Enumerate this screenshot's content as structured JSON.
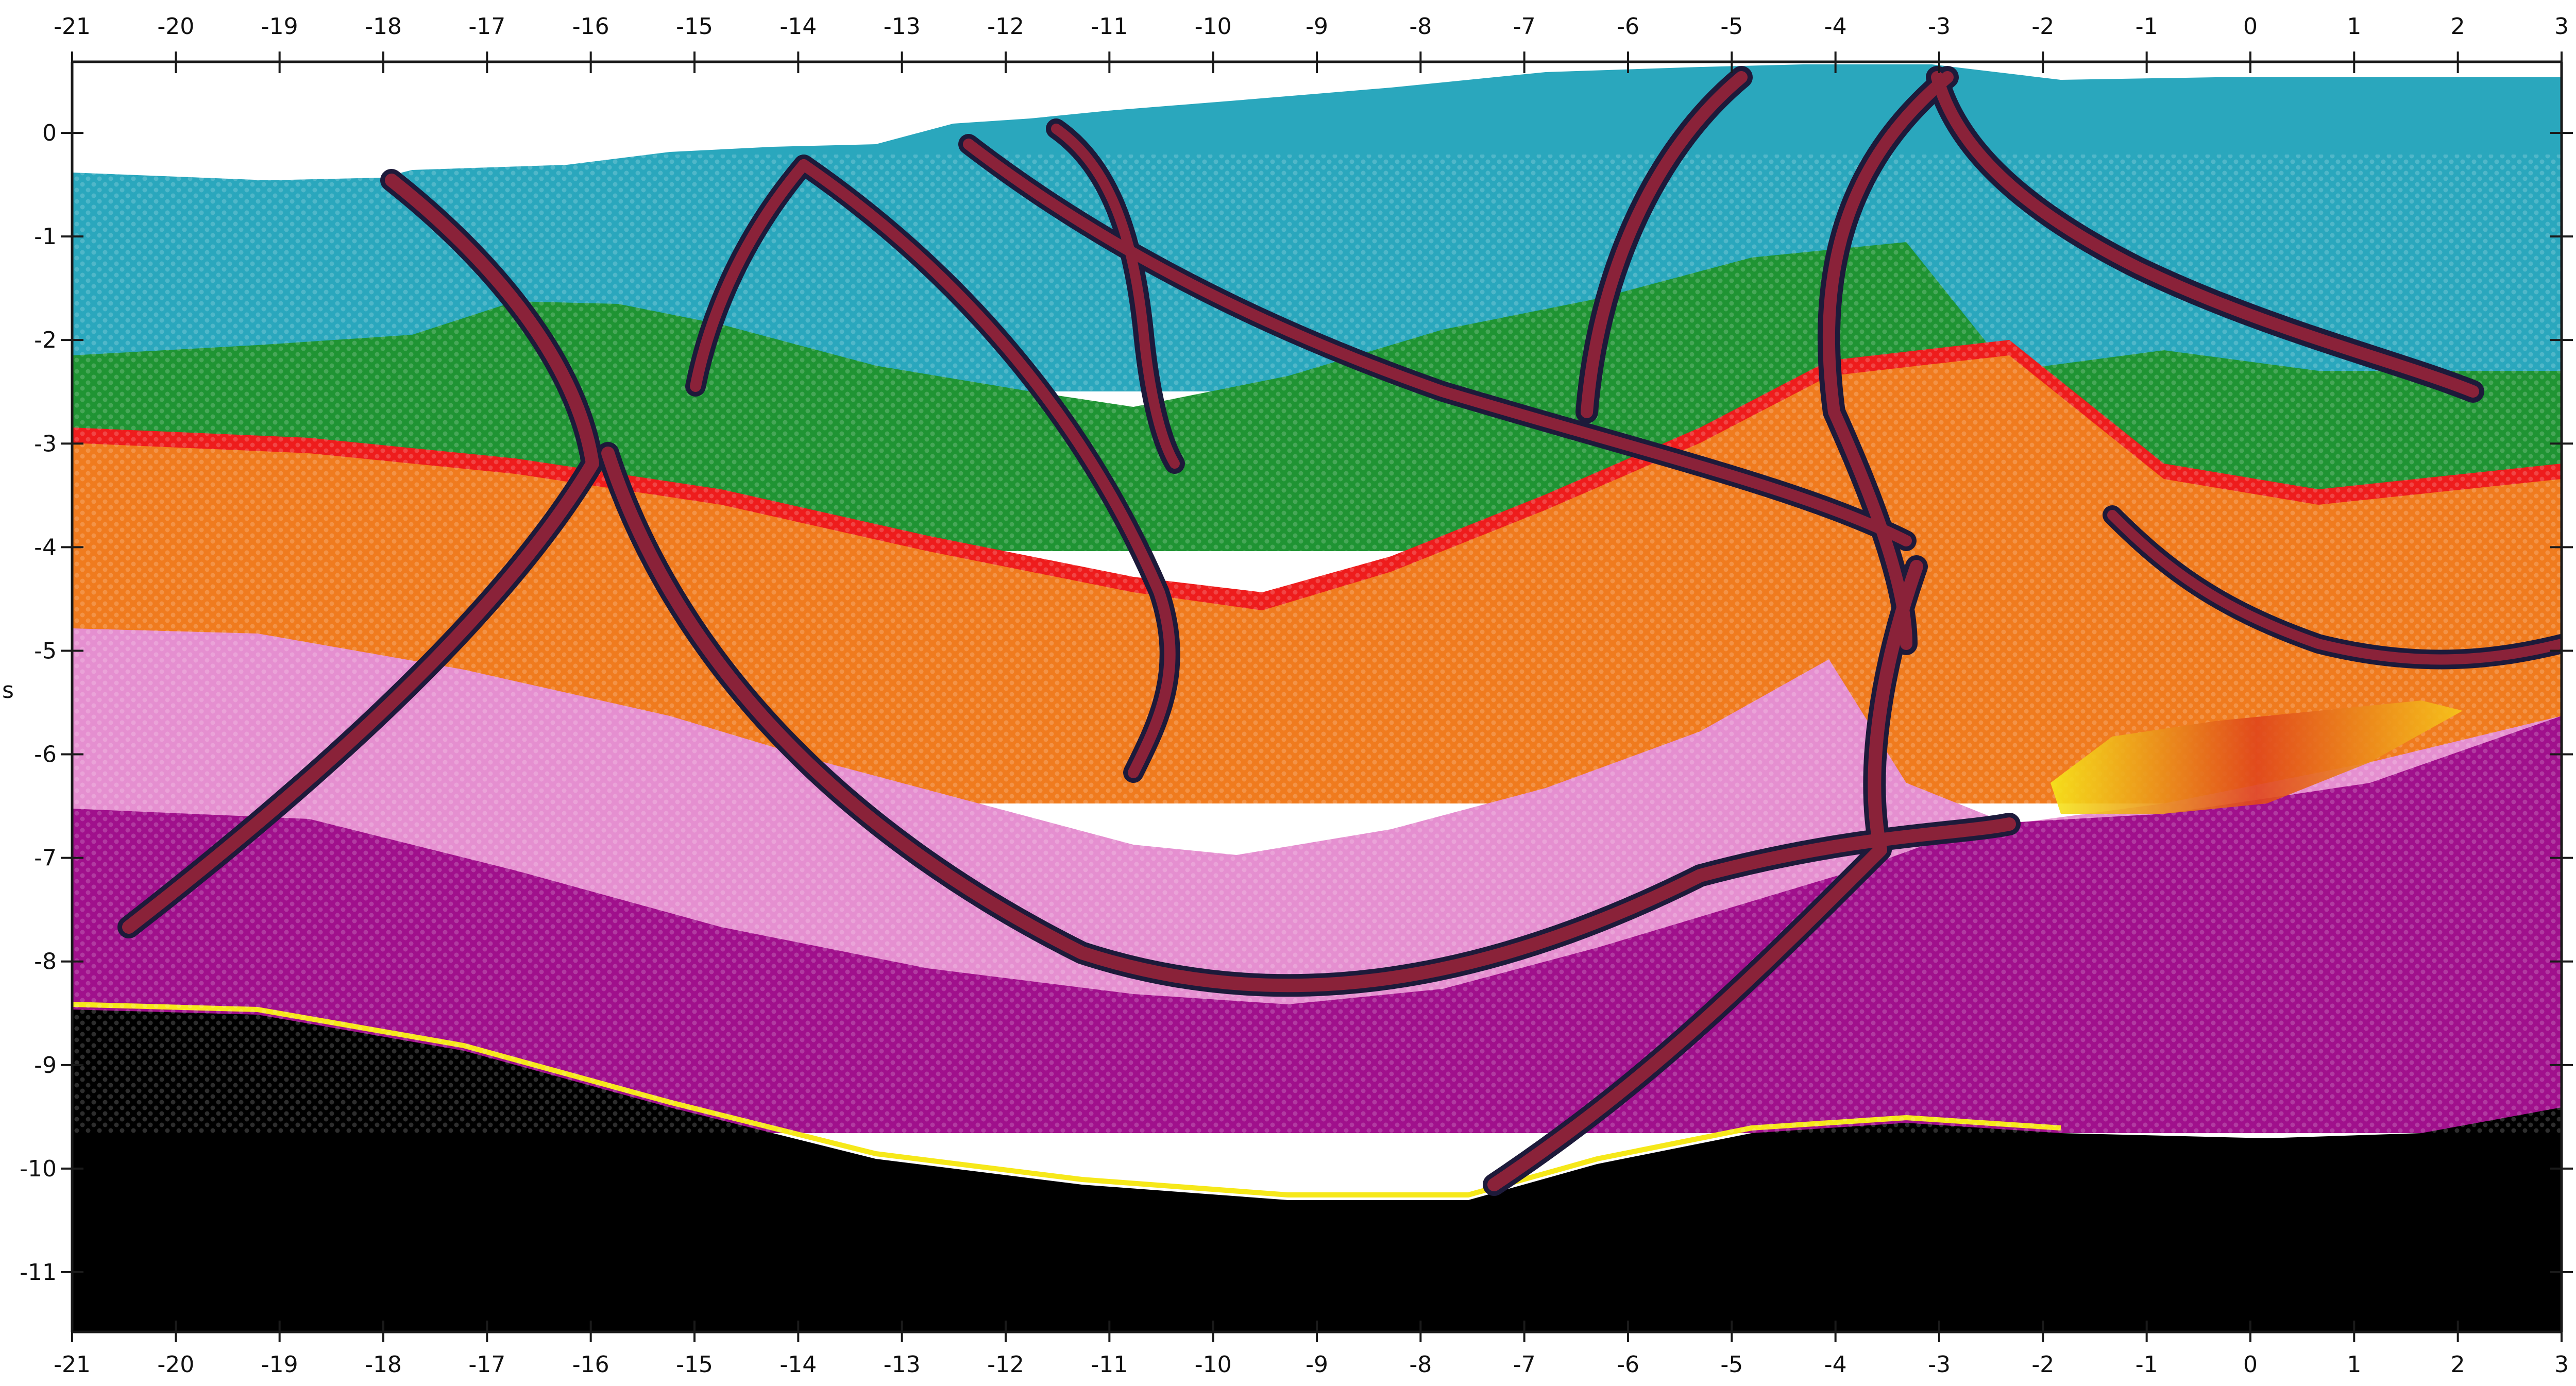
{
  "section": {
    "x_ticks": [
      -21,
      -20,
      -19,
      -18,
      -17,
      -16,
      -15,
      -14,
      -13,
      -12,
      -11,
      -10,
      -9,
      -8,
      -7,
      -6,
      -5,
      -4,
      -3,
      -2,
      -1,
      0,
      1,
      2,
      3
    ],
    "y_ticks": [
      0,
      -1,
      -2,
      -3,
      -4,
      -5,
      -6,
      -7,
      -8,
      -9,
      -10,
      -11
    ],
    "y_axis_label_fragment": "s",
    "layer_colors": {
      "sky": "#ffffff",
      "teal": "#2aa7bd",
      "green": "#1f9433",
      "red": "#ee1c1c",
      "orange": "#f07b1e",
      "pink": "#e58fd0",
      "magenta": "#a0108c",
      "black": "#000000",
      "fault": "#8a2239",
      "fault_edge": "#1d1a3a",
      "yellow": "#f6e81a"
    }
  }
}
